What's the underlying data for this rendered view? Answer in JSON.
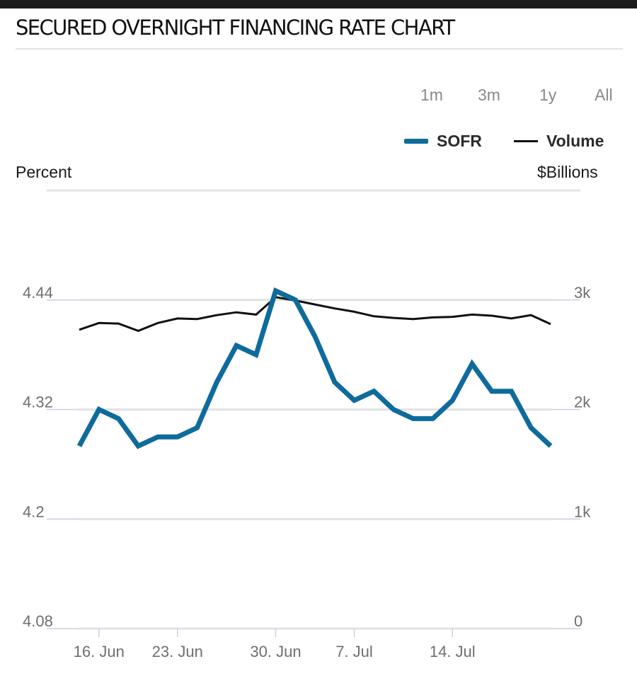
{
  "header": {
    "title": "SECURED OVERNIGHT FINANCING RATE CHART"
  },
  "range_buttons": [
    {
      "label": "1m"
    },
    {
      "label": "3m"
    },
    {
      "label": "1y"
    },
    {
      "label": "All"
    }
  ],
  "legend": {
    "sofr": {
      "label": "SOFR",
      "color": "#0e6b9c"
    },
    "volume": {
      "label": "Volume",
      "color": "#111111"
    }
  },
  "axes": {
    "left_unit": "Percent",
    "right_unit": "$Billions"
  },
  "chart_data": {
    "type": "line",
    "title": "SECURED OVERNIGHT FINANCING RATE CHART",
    "x_tick_labels": [
      {
        "label": "16. Jun",
        "index": 1
      },
      {
        "label": "23. Jun",
        "index": 5
      },
      {
        "label": "30. Jun",
        "index": 10
      },
      {
        "label": "7. Jul",
        "index": 14
      },
      {
        "label": "14. Jul",
        "index": 19
      }
    ],
    "left_axis": {
      "label": "Percent",
      "ticks": [
        "4.08",
        "4.2",
        "4.32",
        "4.44"
      ],
      "range": [
        4.08,
        4.56
      ]
    },
    "right_axis": {
      "label": "$Billions",
      "ticks": [
        "0",
        "1k",
        "2k",
        "3k"
      ],
      "range": [
        0,
        3900
      ]
    },
    "series": [
      {
        "name": "SOFR",
        "axis": "left",
        "color": "#0e6b9c",
        "values": [
          4.28,
          4.32,
          4.31,
          4.28,
          4.29,
          4.29,
          4.3,
          4.35,
          4.39,
          4.38,
          4.45,
          4.44,
          4.4,
          4.35,
          4.33,
          4.34,
          4.32,
          4.31,
          4.31,
          4.33,
          4.37,
          4.34,
          4.34,
          4.3,
          4.28
        ]
      },
      {
        "name": "Volume",
        "axis": "right",
        "color": "#111111",
        "values": [
          2660,
          2720,
          2715,
          2650,
          2720,
          2760,
          2755,
          2790,
          2815,
          2795,
          2950,
          2920,
          2885,
          2850,
          2820,
          2780,
          2765,
          2755,
          2770,
          2775,
          2795,
          2785,
          2760,
          2790,
          2710
        ]
      }
    ]
  }
}
